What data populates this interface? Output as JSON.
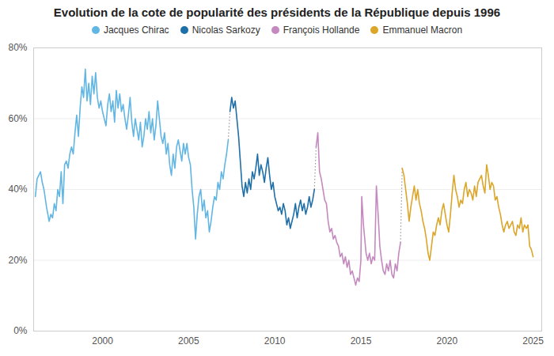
{
  "chart_data": {
    "type": "line",
    "title": "Evolution de la cote de popularité des présidents de la République depuis 1996",
    "legend": "top",
    "grid": true,
    "xlim": [
      1996,
      2025.5
    ],
    "xticks": [
      2000,
      2005,
      2010,
      2015,
      2020,
      2025
    ],
    "ylim": [
      0,
      80
    ],
    "yticks": [
      {
        "value": 0,
        "label": "0%"
      },
      {
        "value": 20,
        "label": "20%"
      },
      {
        "value": 40,
        "label": "40%"
      },
      {
        "value": 60,
        "label": "60%"
      },
      {
        "value": 80,
        "label": "80%"
      }
    ],
    "series": [
      {
        "name": "Jacques Chirac",
        "color": "#62b6e3",
        "x": [
          1996.1,
          1996.2,
          1996.3,
          1996.4,
          1996.5,
          1996.6,
          1996.75,
          1996.9,
          1997.0,
          1997.1,
          1997.2,
          1997.3,
          1997.4,
          1997.5,
          1997.6,
          1997.7,
          1997.8,
          1997.9,
          1998.0,
          1998.1,
          1998.2,
          1998.3,
          1998.4,
          1998.5,
          1998.6,
          1998.7,
          1998.8,
          1998.9,
          1999.0,
          1999.1,
          1999.2,
          1999.3,
          1999.4,
          1999.5,
          1999.6,
          1999.7,
          1999.8,
          1999.9,
          2000.0,
          2000.1,
          2000.2,
          2000.3,
          2000.4,
          2000.5,
          2000.6,
          2000.7,
          2000.8,
          2000.9,
          2001.0,
          2001.1,
          2001.2,
          2001.3,
          2001.4,
          2001.5,
          2001.6,
          2001.7,
          2001.8,
          2001.9,
          2002.0,
          2002.1,
          2002.2,
          2002.3,
          2002.4,
          2002.5,
          2002.6,
          2002.7,
          2002.8,
          2002.9,
          2003.0,
          2003.1,
          2003.2,
          2003.3,
          2003.4,
          2003.5,
          2003.6,
          2003.7,
          2003.8,
          2003.9,
          2004.0,
          2004.1,
          2004.2,
          2004.3,
          2004.4,
          2004.5,
          2004.6,
          2004.7,
          2004.8,
          2004.9,
          2005.0,
          2005.1,
          2005.2,
          2005.3,
          2005.4,
          2005.5,
          2005.6,
          2005.7,
          2005.8,
          2005.9,
          2006.0,
          2006.1,
          2006.2,
          2006.3,
          2006.4,
          2006.5,
          2006.6,
          2006.7,
          2006.8,
          2006.9,
          2007.0,
          2007.1,
          2007.2,
          2007.3
        ],
        "values": [
          38,
          43,
          44,
          45,
          42,
          40,
          35,
          31,
          33,
          32,
          36,
          34,
          40,
          38,
          45,
          36,
          47,
          48,
          46,
          50,
          52,
          50,
          56,
          61,
          55,
          63,
          69,
          66,
          74,
          65,
          70,
          64,
          72,
          67,
          73,
          66,
          63,
          65,
          62,
          60,
          58,
          64,
          67,
          62,
          65,
          59,
          68,
          63,
          67,
          62,
          64,
          60,
          57,
          61,
          66,
          59,
          55,
          60,
          57,
          54,
          59,
          52,
          55,
          60,
          57,
          62,
          56,
          60,
          54,
          58,
          65,
          60,
          55,
          53,
          56,
          50,
          53,
          47,
          44,
          50,
          46,
          52,
          54,
          51,
          48,
          53,
          50,
          53,
          49,
          47,
          40,
          35,
          26,
          33,
          38,
          40,
          34,
          37,
          32,
          34,
          28,
          31,
          35,
          38,
          37,
          42,
          40,
          45,
          43,
          47,
          50,
          54
        ]
      },
      {
        "name": "Nicolas Sarkozy",
        "color": "#1f6fa8",
        "x": [
          2007.4,
          2007.5,
          2007.6,
          2007.7,
          2007.8,
          2007.9,
          2008.0,
          2008.1,
          2008.2,
          2008.3,
          2008.4,
          2008.5,
          2008.6,
          2008.7,
          2008.8,
          2008.9,
          2009.0,
          2009.1,
          2009.2,
          2009.3,
          2009.4,
          2009.5,
          2009.6,
          2009.7,
          2009.8,
          2009.9,
          2010.0,
          2010.1,
          2010.2,
          2010.3,
          2010.4,
          2010.5,
          2010.6,
          2010.7,
          2010.8,
          2010.9,
          2011.0,
          2011.1,
          2011.2,
          2011.3,
          2011.4,
          2011.5,
          2011.6,
          2011.7,
          2011.8,
          2011.9,
          2012.0,
          2012.1,
          2012.2,
          2012.3
        ],
        "values": [
          62,
          66,
          63,
          65,
          60,
          55,
          48,
          41,
          38,
          42,
          39,
          43,
          40,
          45,
          43,
          46,
          50,
          44,
          47,
          45,
          42,
          46,
          49,
          44,
          40,
          42,
          38,
          36,
          34,
          35,
          33,
          36,
          34,
          30,
          32,
          29,
          31,
          33,
          36,
          32,
          35,
          37,
          34,
          36,
          33,
          35,
          38,
          35,
          37,
          40
        ]
      },
      {
        "name": "François Hollande",
        "color": "#c48abf",
        "x": [
          2012.4,
          2012.5,
          2012.6,
          2012.7,
          2012.8,
          2012.9,
          2013.0,
          2013.1,
          2013.2,
          2013.3,
          2013.4,
          2013.5,
          2013.6,
          2013.7,
          2013.8,
          2013.9,
          2014.0,
          2014.1,
          2014.2,
          2014.3,
          2014.4,
          2014.5,
          2014.6,
          2014.7,
          2014.8,
          2014.9,
          2015.0,
          2015.05,
          2015.15,
          2015.3,
          2015.4,
          2015.5,
          2015.6,
          2015.7,
          2015.8,
          2015.9,
          2016.0,
          2016.1,
          2016.2,
          2016.3,
          2016.4,
          2016.5,
          2016.6,
          2016.7,
          2016.8,
          2016.9,
          2017.0,
          2017.1,
          2017.2,
          2017.3
        ],
        "values": [
          52,
          56,
          45,
          43,
          40,
          37,
          36,
          31,
          28,
          29,
          26,
          27,
          25,
          24,
          21,
          22,
          19,
          21,
          18,
          20,
          16,
          17,
          15,
          13,
          15,
          14,
          20,
          38,
          30,
          22,
          20,
          22,
          19,
          21,
          20,
          41,
          33,
          24,
          20,
          17,
          16,
          19,
          17,
          20,
          16,
          15,
          19,
          17,
          22,
          25
        ]
      },
      {
        "name": "Emmanuel Macron",
        "color": "#dba62a",
        "x": [
          2017.4,
          2017.5,
          2017.6,
          2017.7,
          2017.8,
          2017.9,
          2018.0,
          2018.1,
          2018.2,
          2018.3,
          2018.4,
          2018.5,
          2018.6,
          2018.7,
          2018.8,
          2018.9,
          2019.0,
          2019.1,
          2019.2,
          2019.3,
          2019.4,
          2019.5,
          2019.6,
          2019.7,
          2019.8,
          2019.9,
          2020.0,
          2020.1,
          2020.2,
          2020.3,
          2020.4,
          2020.5,
          2020.6,
          2020.7,
          2020.8,
          2020.9,
          2021.0,
          2021.1,
          2021.2,
          2021.3,
          2021.4,
          2021.5,
          2021.6,
          2021.7,
          2021.8,
          2021.9,
          2022.0,
          2022.1,
          2022.2,
          2022.3,
          2022.4,
          2022.5,
          2022.6,
          2022.7,
          2022.8,
          2022.9,
          2023.0,
          2023.1,
          2023.2,
          2023.3,
          2023.4,
          2023.5,
          2023.6,
          2023.7,
          2023.8,
          2023.9,
          2024.0,
          2024.1,
          2024.2,
          2024.3,
          2024.4,
          2024.5,
          2024.6,
          2024.7,
          2024.8,
          2024.9,
          2025.0
        ],
        "values": [
          46,
          44,
          40,
          36,
          31,
          35,
          38,
          41,
          37,
          40,
          36,
          34,
          31,
          29,
          26,
          22,
          20,
          24,
          28,
          27,
          30,
          32,
          30,
          34,
          36,
          33,
          30,
          28,
          33,
          39,
          44,
          40,
          38,
          35,
          37,
          36,
          40,
          42,
          38,
          40,
          39,
          37,
          41,
          38,
          42,
          43,
          44,
          41,
          39,
          47,
          44,
          40,
          42,
          41,
          37,
          38,
          35,
          33,
          30,
          28,
          30,
          31,
          29,
          30,
          31,
          28,
          27,
          30,
          29,
          32,
          28,
          30,
          29,
          30,
          24,
          23,
          21
        ]
      }
    ]
  }
}
